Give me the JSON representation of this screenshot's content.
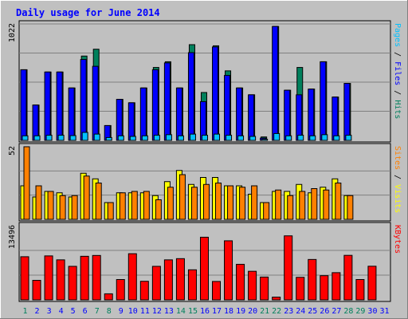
{
  "chart_data": {
    "type": "bar",
    "title": "Daily usage for June 2014",
    "colors": {
      "background": "#c0c0c0",
      "plot_background": "#c0c0c0",
      "title": "#0000ff",
      "hits": "#00805c",
      "files": "#0000ff",
      "pages": "#00c0ff",
      "visits": "#ffff00",
      "sites": "#ff8000",
      "kbytes": "#ff0000",
      "weekend_label": "#00805c",
      "weekday_label": "#0000ff"
    },
    "x_labels": [
      "1",
      "2",
      "3",
      "4",
      "5",
      "6",
      "7",
      "8",
      "9",
      "10",
      "11",
      "12",
      "13",
      "14",
      "15",
      "16",
      "17",
      "18",
      "19",
      "20",
      "21",
      "22",
      "23",
      "24",
      "25",
      "26",
      "27",
      "28",
      "29",
      "30",
      "31"
    ],
    "weekend_days": [
      1,
      7,
      8,
      14,
      15,
      21,
      22,
      28,
      29
    ],
    "panels": [
      {
        "id": "usage",
        "ymax_label": "1022",
        "ymax": 1022,
        "axis_label_parts": [
          {
            "text": "Pages",
            "color": "#00c0ff"
          },
          {
            "text": " / ",
            "color": "#000000"
          },
          {
            "text": "Files",
            "color": "#0000ff"
          },
          {
            "text": " / ",
            "color": "#000000"
          },
          {
            "text": "Hits",
            "color": "#00805c"
          }
        ],
        "series": [
          {
            "name": "Hits",
            "color": "#00805c",
            "values": [
              620,
              310,
              600,
              600,
              460,
              740,
              800,
              130,
              360,
              330,
              460,
              640,
              690,
              460,
              840,
              420,
              830,
              610,
              460,
              400,
              30,
              1000,
              440,
              640,
              450,
              690,
              380,
              500,
              0,
              0,
              0
            ]
          },
          {
            "name": "Files",
            "color": "#0000ff",
            "values": [
              620,
              310,
              600,
              600,
              460,
              710,
              650,
              130,
              360,
              330,
              460,
              620,
              680,
              460,
              770,
              340,
              820,
              570,
              460,
              400,
              20,
              1000,
              440,
              400,
              450,
              690,
              380,
              500,
              0,
              0,
              0
            ]
          },
          {
            "name": "Pages",
            "color": "#00c0ff",
            "values": [
              40,
              40,
              45,
              45,
              42,
              70,
              55,
              25,
              40,
              35,
              40,
              45,
              50,
              40,
              55,
              45,
              55,
              45,
              40,
              35,
              10,
              60,
              40,
              45,
              40,
              50,
              40,
              45,
              0,
              0,
              0
            ]
          }
        ]
      },
      {
        "id": "visits",
        "ymax_label": "52",
        "ymax": 52,
        "axis_label_parts": [
          {
            "text": "Sites",
            "color": "#ff8000"
          },
          {
            "text": " / ",
            "color": "#000000"
          },
          {
            "text": "Visits",
            "color": "#ffff00"
          }
        ],
        "series": [
          {
            "name": "Visits",
            "color": "#ffff00",
            "values": [
              24,
              16,
              20,
              19,
              16,
              33,
              29,
              12,
              19,
              19,
              19,
              17,
              27,
              35,
              25,
              30,
              30,
              24,
              24,
              18,
              12,
              20,
              20,
              25,
              19,
              23,
              29,
              17,
              0,
              0,
              0
            ]
          },
          {
            "name": "Sites",
            "color": "#ff8000",
            "values": [
              52,
              24,
              20,
              17,
              17,
              31,
              26,
              12,
              19,
              20,
              20,
              14,
              23,
              32,
              23,
              25,
              26,
              24,
              23,
              24,
              12,
              21,
              17,
              20,
              22,
              21,
              26,
              17,
              0,
              0,
              0
            ]
          }
        ]
      },
      {
        "id": "kbytes",
        "ymax_label": "13496",
        "ymax": 13496,
        "axis_label_parts": [
          {
            "text": "KBytes",
            "color": "#ff0000"
          }
        ],
        "series": [
          {
            "name": "KBytes",
            "color": "#ff0000",
            "values": [
              7850,
              3550,
              8000,
              7280,
              6100,
              7930,
              8080,
              1100,
              3700,
              8400,
              3380,
              6100,
              7280,
              7500,
              5470,
              11400,
              3350,
              10750,
              6470,
              5200,
              4150,
              500,
              11650,
              4100,
              7350,
              4400,
              4950,
              8100,
              3700,
              6120,
              0
            ]
          }
        ]
      }
    ]
  }
}
